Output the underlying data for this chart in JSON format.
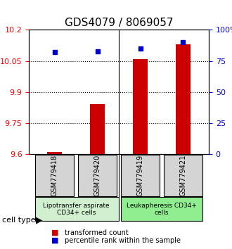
{
  "title": "GDS4079 / 8069057",
  "samples": [
    "GSM779418",
    "GSM779420",
    "GSM779419",
    "GSM779421"
  ],
  "transformed_counts": [
    9.61,
    9.84,
    10.06,
    10.13
  ],
  "percentile_ranks": [
    82,
    83,
    85,
    90
  ],
  "ylim_left": [
    9.6,
    10.2
  ],
  "ylim_right": [
    0,
    100
  ],
  "yticks_left": [
    9.6,
    9.75,
    9.9,
    10.05,
    10.2
  ],
  "ytick_labels_left": [
    "9.6",
    "9.75",
    "9.9",
    "10.05",
    "10.2"
  ],
  "yticks_right": [
    0,
    25,
    50,
    75,
    100
  ],
  "ytick_labels_right": [
    "0",
    "25",
    "50",
    "75",
    "100%"
  ],
  "hlines": [
    9.75,
    9.9,
    10.05
  ],
  "bar_color": "#cc0000",
  "dot_color": "#0000cc",
  "group1_samples": [
    0,
    1
  ],
  "group2_samples": [
    2,
    3
  ],
  "group1_label": "Lipotransfer aspirate\nCD34+ cells",
  "group2_label": "Leukapheresis CD34+\ncells",
  "group1_bg": "#d4d4d4",
  "group2_bg": "#d4d4d4",
  "cell_type_label": "cell type",
  "legend_bar_label": "transformed count",
  "legend_dot_label": "percentile rank within the sample",
  "title_fontsize": 11,
  "axis_label_fontsize": 8,
  "tick_fontsize": 8
}
